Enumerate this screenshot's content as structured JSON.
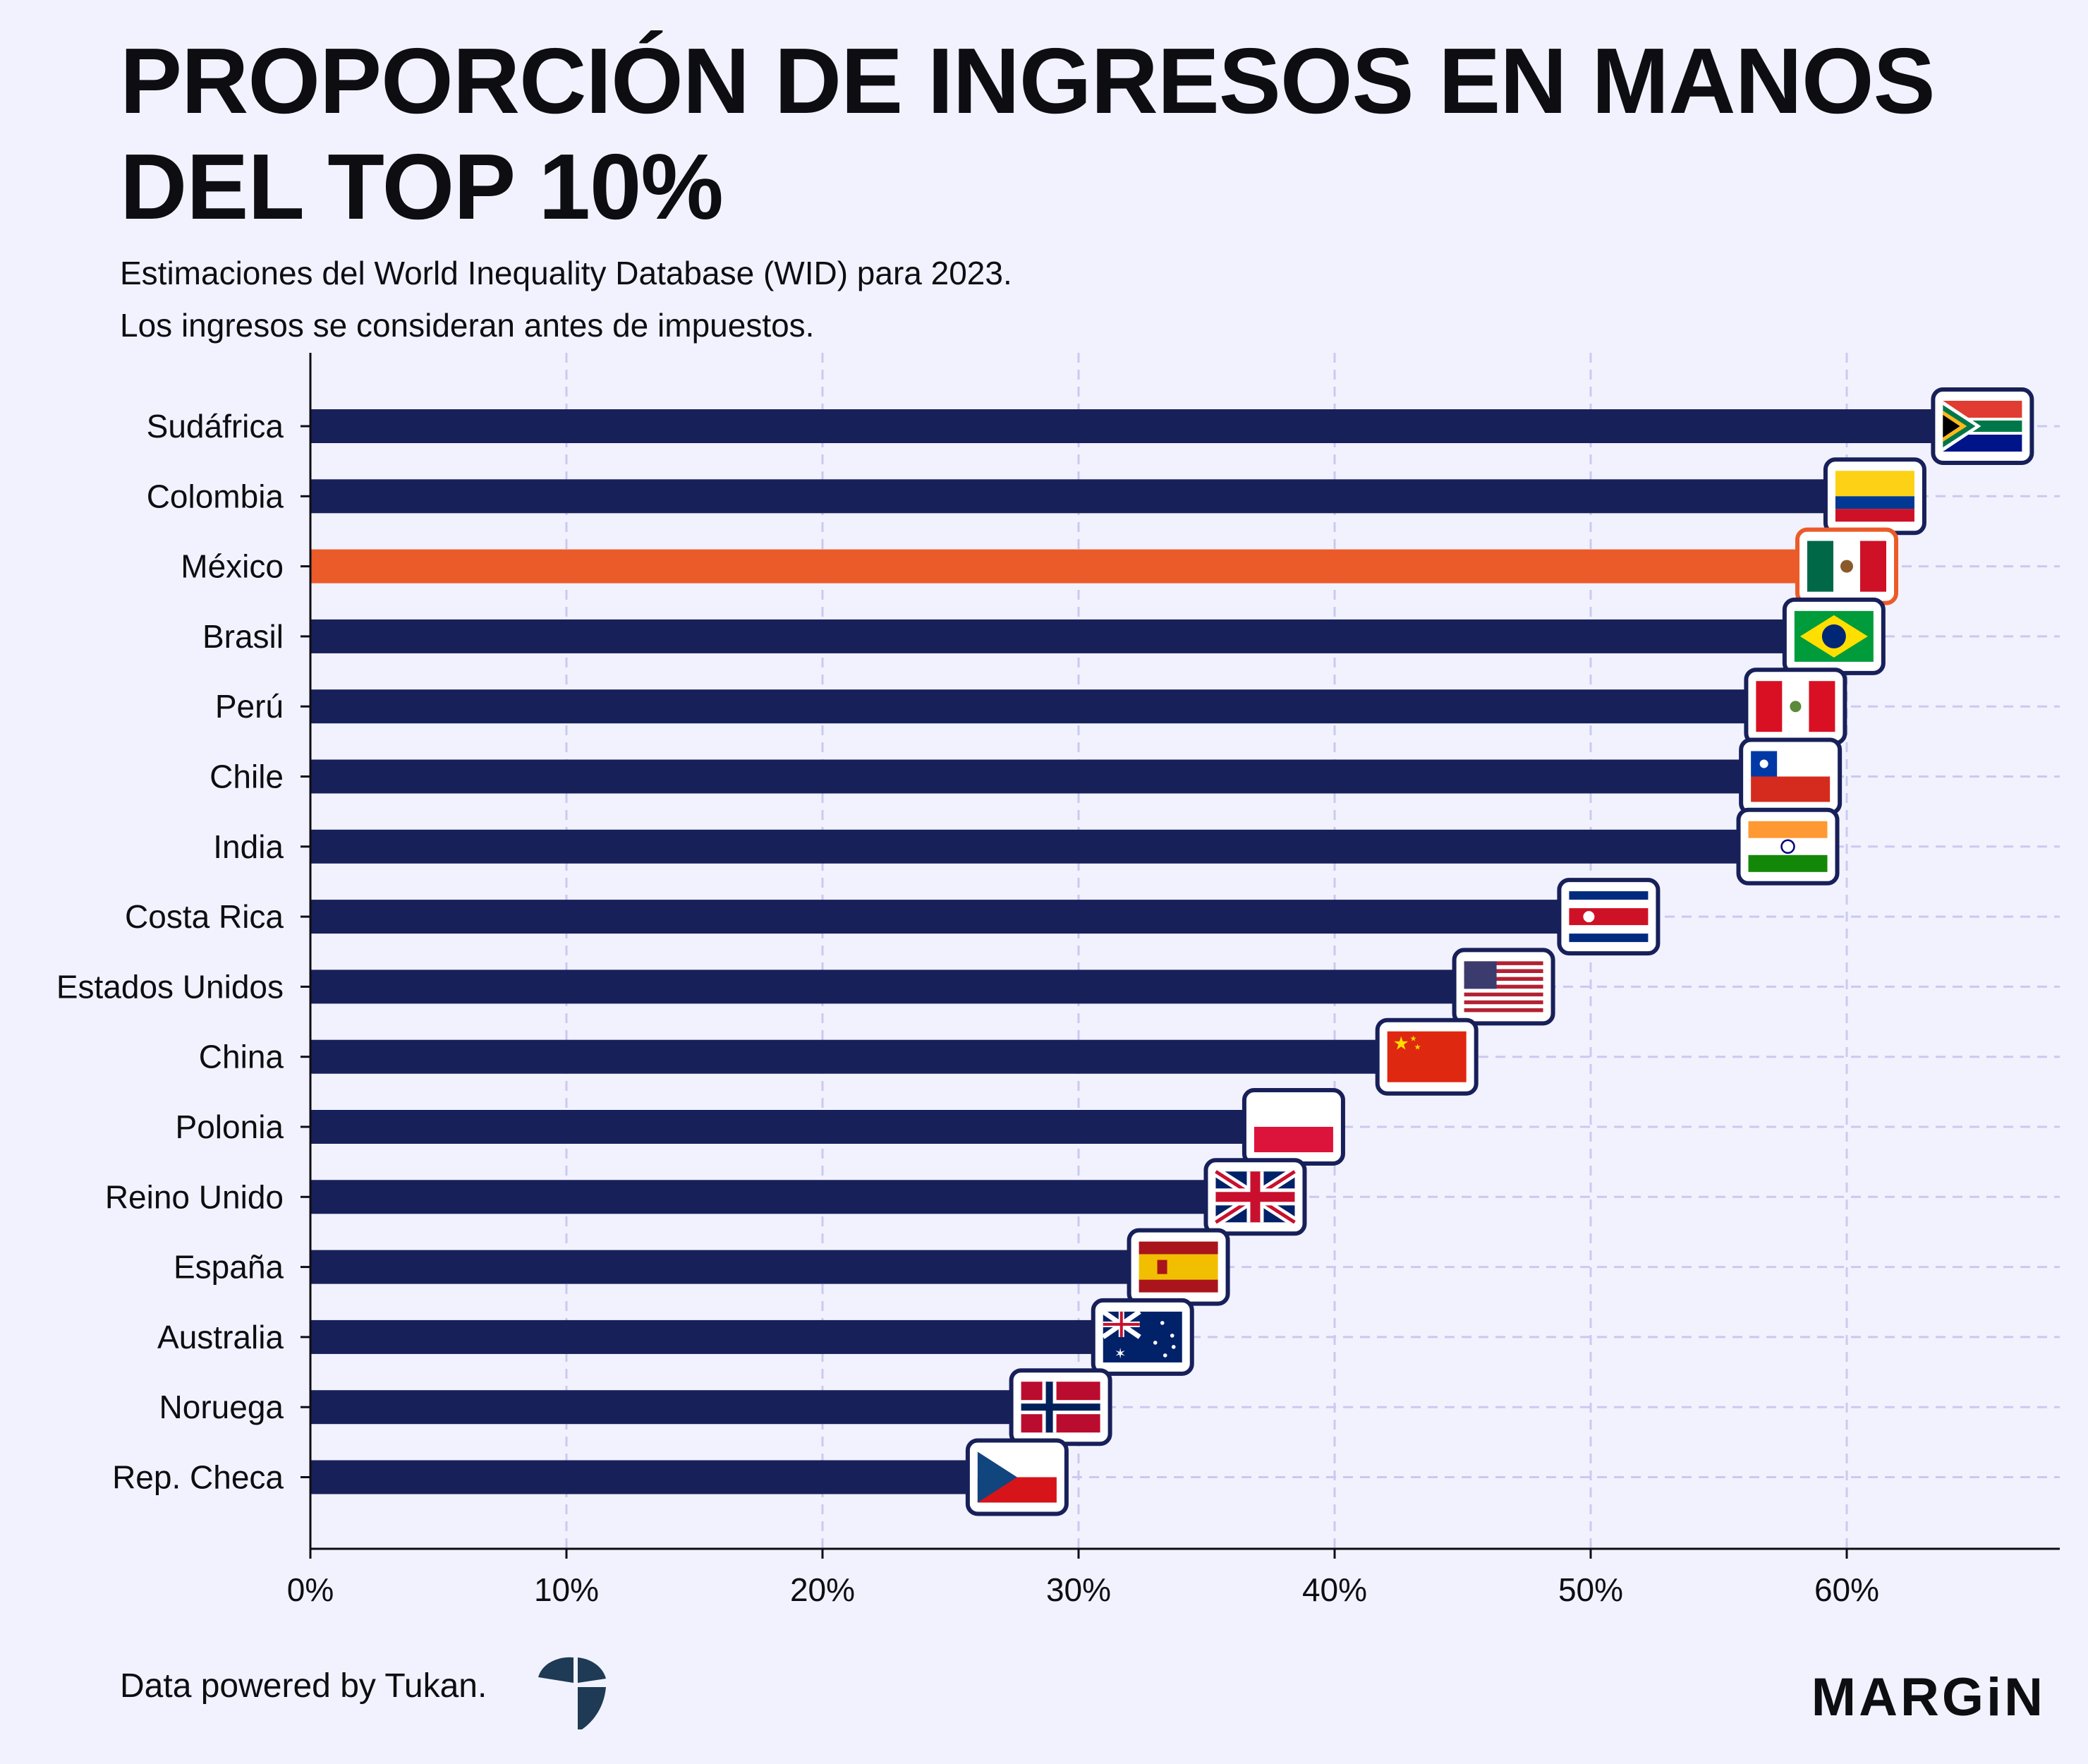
{
  "title_line1": "PROPORCIÓN DE INGRESOS EN MANOS",
  "title_line2": "DEL TOP 10%",
  "subtitle_line1": "Estimaciones del World Inequality Database (WID) para 2023.",
  "subtitle_line2": "Los ingresos se consideran antes de impuestos.",
  "footer_credit": "Data powered by Tukan.",
  "brand": "MARGiN",
  "colors": {
    "background": "#f2f2fe",
    "bar": "#18205a",
    "highlight": "#eb5b2a",
    "grid": "#c9c9f2"
  },
  "chart_data": {
    "type": "bar",
    "orientation": "horizontal",
    "title": "PROPORCIÓN DE INGRESOS EN MANOS DEL TOP 10%",
    "xlabel": "",
    "ylabel": "",
    "xlim": [
      0,
      68
    ],
    "unit": "%",
    "grid": true,
    "highlight": "México",
    "categories": [
      "Sudáfrica",
      "Colombia",
      "México",
      "Brasil",
      "Perú",
      "Chile",
      "India",
      "Costa Rica",
      "Estados Unidos",
      "China",
      "Polonia",
      "Reino Unido",
      "España",
      "Australia",
      "Noruega",
      "Rep. Checa"
    ],
    "values": [
      65.3,
      61.1,
      60.0,
      59.5,
      58.0,
      57.8,
      57.7,
      50.7,
      46.6,
      43.6,
      38.4,
      36.9,
      33.9,
      32.5,
      29.3,
      27.6
    ],
    "flags": [
      "south-africa-flag",
      "colombia-flag",
      "mexico-flag",
      "brazil-flag",
      "peru-flag",
      "chile-flag",
      "india-flag",
      "costa-rica-flag",
      "usa-flag",
      "china-flag",
      "poland-flag",
      "uk-flag",
      "spain-flag",
      "australia-flag",
      "norway-flag",
      "czech-flag"
    ],
    "x_ticks": [
      "0%",
      "10%",
      "20%",
      "30%",
      "40%",
      "50%",
      "60%"
    ]
  }
}
